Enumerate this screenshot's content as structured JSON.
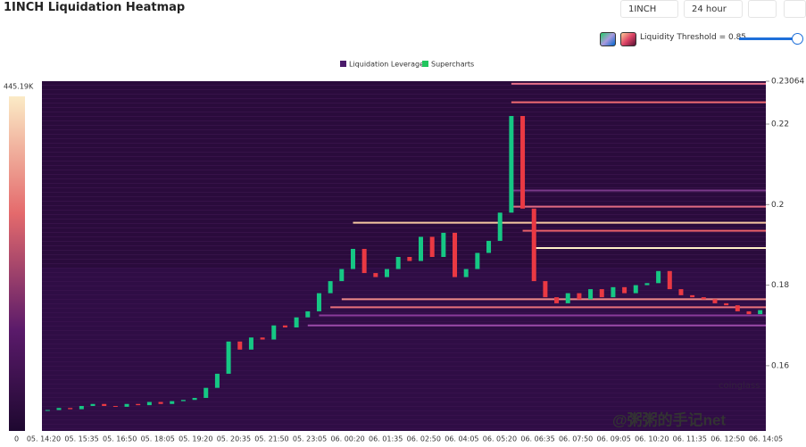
{
  "header": {
    "title": "1INCH Liquidation Heatmap",
    "symbol": "1INCH",
    "range": "24 hour",
    "threshold": "Liquidity Threshold = 0.85"
  },
  "chart_data": {
    "type": "heatmap-candlestick",
    "legend": [
      "Liquidation Leverage",
      "Supercharts"
    ],
    "legend_colors": [
      "#4b1a6a",
      "#22c55e"
    ],
    "colorbar_labels": [
      "445.19K",
      "0"
    ],
    "x_ticks": [
      "05. 14:20",
      "05. 15:35",
      "05. 16:50",
      "05. 18:05",
      "05. 19:20",
      "05. 20:35",
      "05. 21:50",
      "05. 23:05",
      "06. 00:20",
      "06. 01:35",
      "06. 02:50",
      "06. 04:05",
      "06. 05:20",
      "06. 06:35",
      "06. 07:50",
      "06. 09:05",
      "06. 10:20",
      "06. 11:35",
      "06. 12:50",
      "06. 14:05"
    ],
    "ylim": [
      0.1438,
      0.23064
    ],
    "yticks": [
      0.16,
      0.18,
      0.2,
      0.22,
      0.23064
    ],
    "up_color": "#16c784",
    "down_color": "#ea3943",
    "close": [
      0.149,
      0.1495,
      0.1492,
      0.15,
      0.1505,
      0.15,
      0.1498,
      0.1505,
      0.1502,
      0.151,
      0.1505,
      0.1512,
      0.1515,
      0.152,
      0.1545,
      0.158,
      0.166,
      0.164,
      0.167,
      0.1665,
      0.17,
      0.1695,
      0.172,
      0.1735,
      0.178,
      0.181,
      0.184,
      0.189,
      0.183,
      0.182,
      0.184,
      0.187,
      0.186,
      0.192,
      0.187,
      0.193,
      0.182,
      0.184,
      0.188,
      0.191,
      0.198,
      0.222,
      0.199,
      0.181,
      0.177,
      0.1755,
      0.178,
      0.1765,
      0.179,
      0.177,
      0.1795,
      0.178,
      0.18,
      0.1805,
      0.1835,
      0.179,
      0.1775,
      0.177,
      0.1765,
      0.1755,
      0.175,
      0.1735,
      0.1728,
      0.1738
    ],
    "levels": {
      "values": [
        0.23,
        0.2254,
        0.2035,
        0.1995,
        0.1935,
        0.1892,
        0.1955,
        0.1765,
        0.1745,
        0.1725,
        0.17
      ],
      "colors": [
        "#e8708a",
        "#f06a70",
        "#7a3a8a",
        "#e06a80",
        "#e8606a",
        "#fff0c8",
        "#f5c8a0",
        "#f08a8a",
        "#e8707a",
        "#8a3a9a",
        "#9a4aa8"
      ],
      "start": [
        41,
        41,
        41,
        41,
        42,
        43,
        27,
        26,
        25,
        24,
        23
      ]
    },
    "watermark": [
      "coinglass",
      "@粥粥的手记net"
    ]
  }
}
